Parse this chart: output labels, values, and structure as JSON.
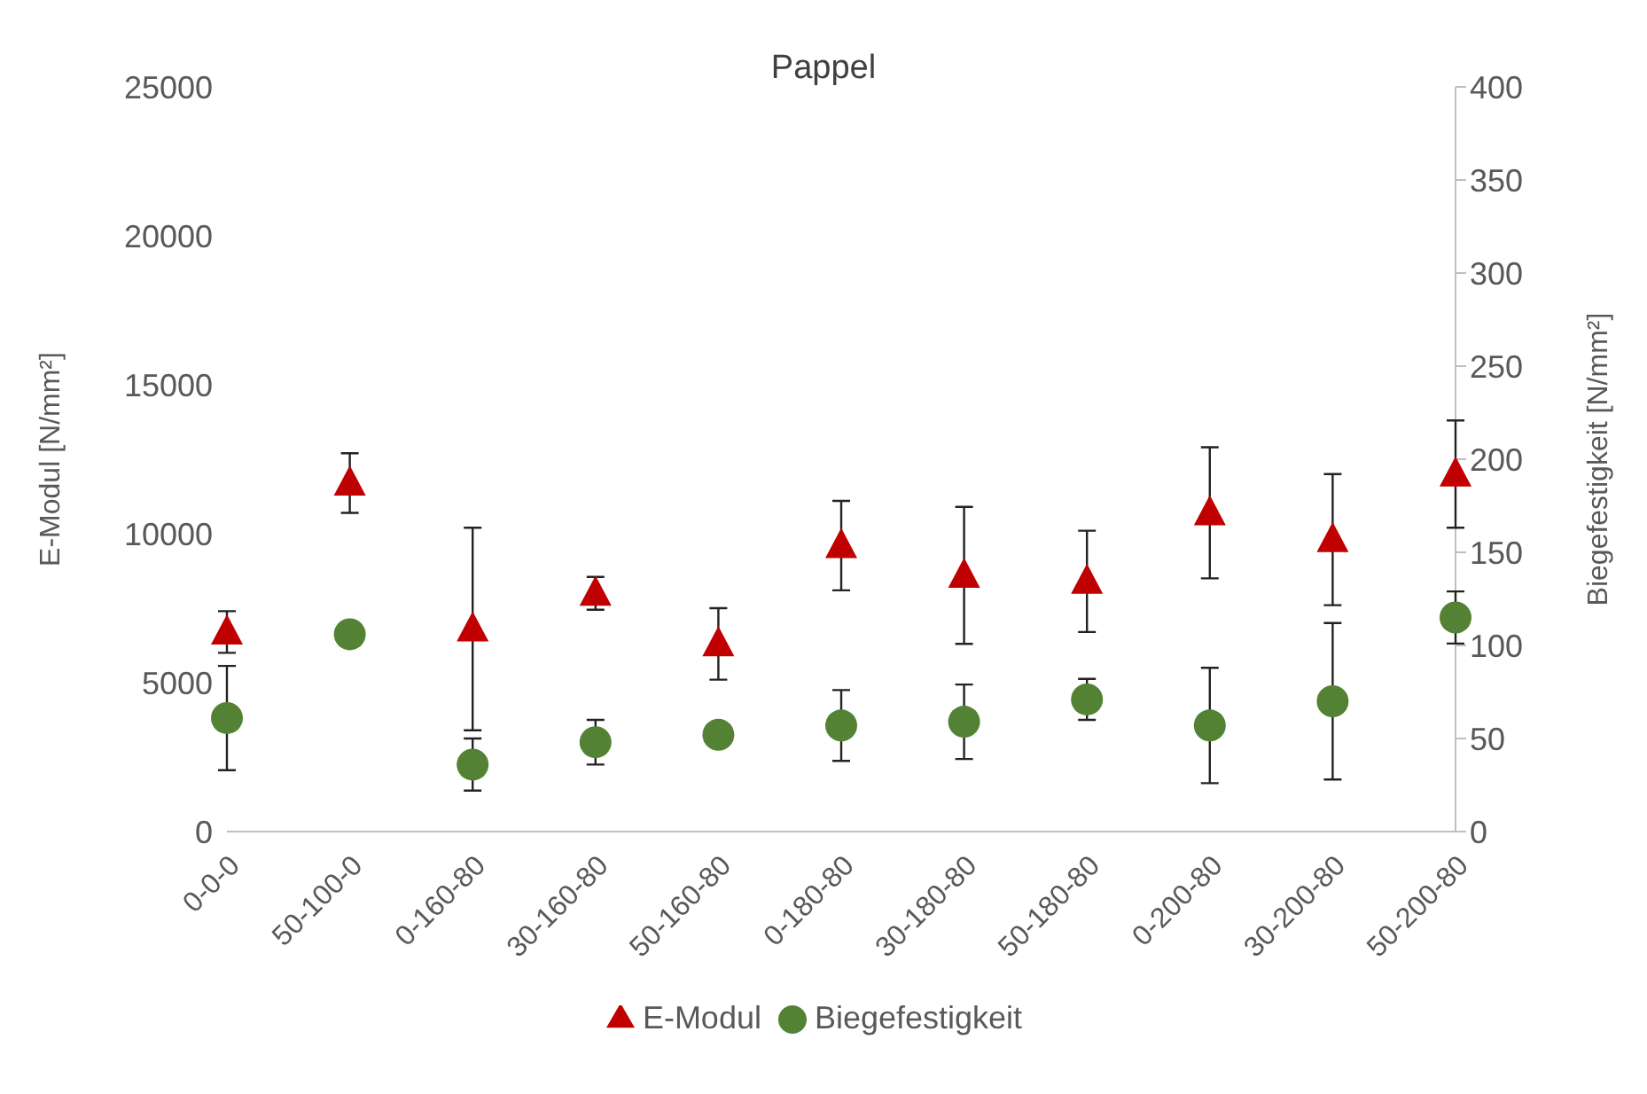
{
  "chart_data": {
    "type": "scatter",
    "title": "Pappel",
    "ylabel": "E-Modul  [N/mm²]",
    "y2label": "Biegefestigkeit [N/mm²]",
    "categories": [
      "0-0-0",
      "50-100-0",
      "0-160-80",
      "30-160-80",
      "50-160-80",
      "0-180-80",
      "30-180-80",
      "50-180-80",
      "0-200-80",
      "30-200-80",
      "50-200-80"
    ],
    "series": [
      {
        "name": "E-Modul",
        "marker": "triangle",
        "color": "#c00000",
        "values": [
          6700,
          11700,
          6800,
          8000,
          6300,
          9600,
          8600,
          8400,
          10700,
          9800,
          12000
        ],
        "errors": [
          700,
          1000,
          3400,
          550,
          1200,
          1500,
          2300,
          1700,
          2200,
          2200,
          1800
        ]
      },
      {
        "name": "Biegefestigkeit",
        "marker": "circle",
        "axis": "y2",
        "color": "#548235",
        "values": [
          61,
          106,
          36,
          48,
          52,
          57,
          59,
          71,
          57,
          70,
          115
        ],
        "errors": [
          28,
          null,
          14,
          12,
          null,
          19,
          20,
          11,
          31,
          42,
          14
        ]
      }
    ],
    "ylim": [
      0,
      25000
    ],
    "yticks": [
      0,
      5000,
      10000,
      15000,
      20000,
      25000
    ],
    "y2lim": [
      0,
      400
    ],
    "y2ticks": [
      0,
      50,
      100,
      150,
      200,
      250,
      300,
      350,
      400
    ],
    "grid": false,
    "legend": "bottom"
  }
}
